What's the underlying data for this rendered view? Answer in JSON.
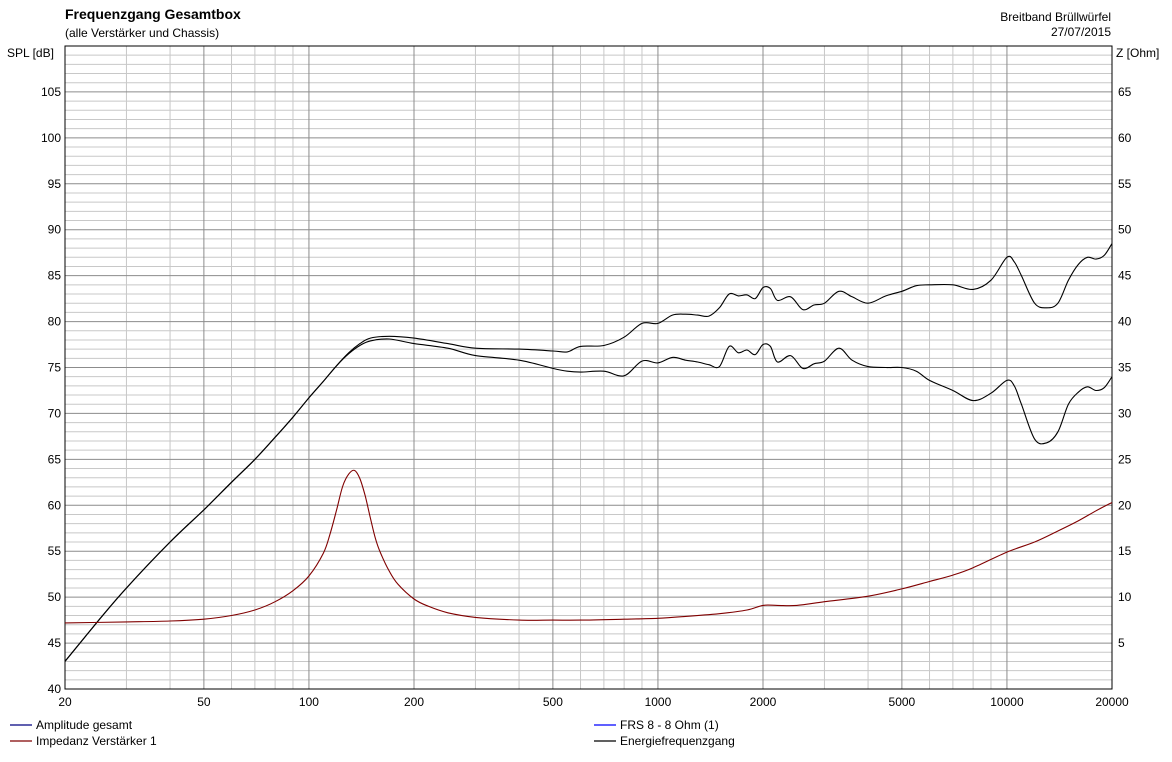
{
  "header": {
    "title": "Frequenzgang Gesamtbox",
    "subtitle": "(alle Verstärker und Chassis)",
    "right_line1": "Breitband Brüllwürfel",
    "right_line2": "27/07/2015"
  },
  "chart_data": {
    "type": "line",
    "title": "Frequenzgang Gesamtbox",
    "subtitle": "(alle Verstärker und Chassis)",
    "ylabel": "SPL [dB]",
    "y2label": "Z [Ohm]",
    "xscale": "log",
    "xlim": [
      20,
      20000
    ],
    "ylim": [
      40,
      110
    ],
    "y2lim": [
      0,
      70
    ],
    "x_ticks": [
      20,
      50,
      100,
      200,
      500,
      1000,
      2000,
      5000,
      10000,
      20000
    ],
    "y_ticks": [
      40,
      45,
      50,
      55,
      60,
      65,
      70,
      75,
      80,
      85,
      90,
      95,
      100,
      105
    ],
    "y2_ticks": [
      5,
      10,
      15,
      20,
      25,
      30,
      35,
      40,
      45,
      50,
      55,
      60,
      65
    ],
    "grid": true,
    "legend_position": "bottom",
    "legend": [
      {
        "label": "Amplitude gesamt",
        "color": "#000080"
      },
      {
        "label": "Impedanz Verstärker 1",
        "color": "#800000"
      },
      {
        "label": "FRS 8 - 8 Ohm (1)",
        "color": "#0000ff"
      },
      {
        "label": "Energiefrequenzgang",
        "color": "#000000"
      }
    ],
    "series": [
      {
        "name": "Amplitude gesamt",
        "axis": "left",
        "color": "#000000",
        "x": [
          20,
          25,
          30,
          40,
          50,
          60,
          70,
          80,
          90,
          100,
          110,
          120,
          130,
          140,
          150,
          170,
          200,
          250,
          300,
          400,
          500,
          550,
          600,
          700,
          800,
          900,
          1000,
          1100,
          1200,
          1300,
          1400,
          1500,
          1600,
          1700,
          1800,
          1900,
          2000,
          2100,
          2200,
          2400,
          2600,
          2800,
          3000,
          3300,
          3600,
          4000,
          4500,
          5000,
          5500,
          6000,
          7000,
          8000,
          9000,
          10000,
          10500,
          11000,
          12000,
          13000,
          14000,
          15000,
          16000,
          17000,
          18000,
          19000,
          20000
        ],
        "y": [
          43,
          47.5,
          51,
          56,
          59.5,
          62.5,
          65,
          67.4,
          69.6,
          71.7,
          73.5,
          75.2,
          76.5,
          77.4,
          77.9,
          78.1,
          77.6,
          77.1,
          76.3,
          75.8,
          74.9,
          74.6,
          74.5,
          74.6,
          74.1,
          75.7,
          75.5,
          76.1,
          75.8,
          75.6,
          75.3,
          75.1,
          77.3,
          76.6,
          76.9,
          76.4,
          77.5,
          77.3,
          75.6,
          76.3,
          74.9,
          75.4,
          75.7,
          77.1,
          75.8,
          75.1,
          75.0,
          75.0,
          74.6,
          73.6,
          72.5,
          71.4,
          72.2,
          73.6,
          73.0,
          71.0,
          67.2,
          66.8,
          68.0,
          71.0,
          72.3,
          72.9,
          72.5,
          72.8,
          74.0
        ]
      },
      {
        "name": "Energiefrequenzgang",
        "axis": "left",
        "color": "#000000",
        "x": [
          20,
          25,
          30,
          40,
          50,
          60,
          70,
          80,
          90,
          100,
          110,
          120,
          130,
          140,
          150,
          170,
          200,
          250,
          300,
          400,
          500,
          550,
          600,
          700,
          800,
          900,
          1000,
          1100,
          1200,
          1300,
          1400,
          1500,
          1600,
          1700,
          1800,
          1900,
          2000,
          2100,
          2200,
          2400,
          2600,
          2800,
          3000,
          3300,
          3600,
          4000,
          4500,
          5000,
          5500,
          6000,
          7000,
          8000,
          9000,
          10000,
          10500,
          11000,
          12000,
          13000,
          14000,
          15000,
          16000,
          17000,
          18000,
          19000,
          20000
        ],
        "y": [
          43,
          47.5,
          51,
          56,
          59.5,
          62.5,
          65,
          67.4,
          69.6,
          71.7,
          73.5,
          75.2,
          76.6,
          77.6,
          78.2,
          78.4,
          78.2,
          77.6,
          77.1,
          77.0,
          76.8,
          76.7,
          77.3,
          77.4,
          78.3,
          79.8,
          79.8,
          80.7,
          80.8,
          80.7,
          80.6,
          81.5,
          83.0,
          82.8,
          82.9,
          82.5,
          83.7,
          83.6,
          82.3,
          82.7,
          81.3,
          81.8,
          82.0,
          83.3,
          82.7,
          82.0,
          82.8,
          83.3,
          83.9,
          84.0,
          84.0,
          83.5,
          84.5,
          87.0,
          86.5,
          85.0,
          82.0,
          81.5,
          82.0,
          84.5,
          86.2,
          87.0,
          86.8,
          87.2,
          88.5
        ]
      },
      {
        "name": "Impedanz Verstärker 1",
        "axis": "right",
        "color": "#800000",
        "x": [
          20,
          30,
          40,
          50,
          60,
          70,
          80,
          90,
          100,
          110,
          115,
          120,
          125,
          130,
          135,
          140,
          145,
          150,
          155,
          160,
          170,
          180,
          200,
          220,
          250,
          300,
          400,
          500,
          600,
          800,
          1000,
          1200,
          1500,
          1800,
          2000,
          2200,
          2500,
          3000,
          4000,
          5000,
          6000,
          7000,
          8000,
          10000,
          12000,
          14000,
          16000,
          18000,
          20000
        ],
        "y": [
          7.2,
          7.3,
          7.4,
          7.6,
          8.0,
          8.6,
          9.5,
          10.7,
          12.3,
          14.8,
          16.9,
          19.5,
          22.1,
          23.4,
          23.8,
          22.9,
          21.0,
          18.6,
          16.4,
          14.9,
          12.8,
          11.4,
          9.8,
          9.0,
          8.3,
          7.8,
          7.5,
          7.5,
          7.5,
          7.6,
          7.7,
          7.9,
          8.2,
          8.6,
          9.1,
          9.1,
          9.1,
          9.5,
          10.1,
          10.9,
          11.7,
          12.4,
          13.2,
          14.9,
          16.0,
          17.2,
          18.3,
          19.4,
          20.3
        ]
      }
    ]
  }
}
